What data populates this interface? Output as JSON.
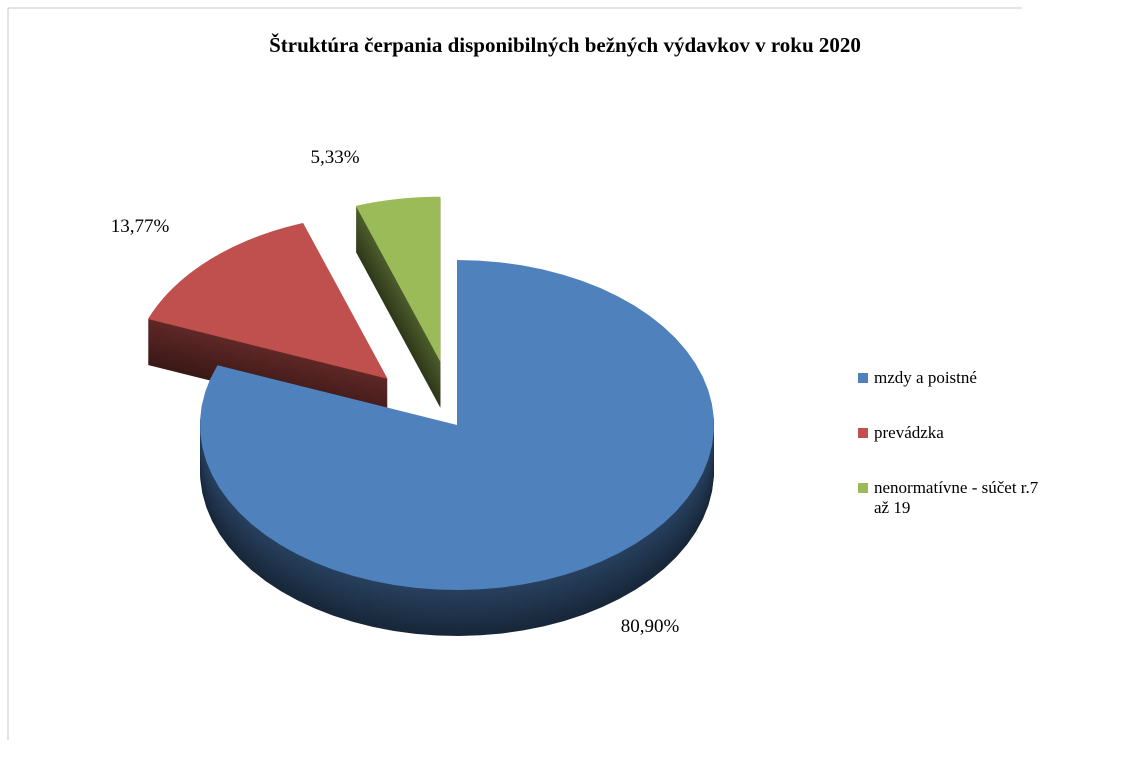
{
  "chart_data": {
    "type": "pie",
    "title": "Štruktúra čerpania disponibilných bežných výdavkov v roku 2020",
    "categories": [
      "mzdy a poistné",
      "prevádzka",
      "nenormatívne - súčet r.7 až 19"
    ],
    "values": [
      80.9,
      13.77,
      5.33
    ],
    "value_labels": [
      "80,90%",
      "13,77%",
      "5,33%"
    ],
    "colors": [
      "#4f81bd",
      "#c0504d",
      "#9bbb59"
    ],
    "legend": "right"
  }
}
